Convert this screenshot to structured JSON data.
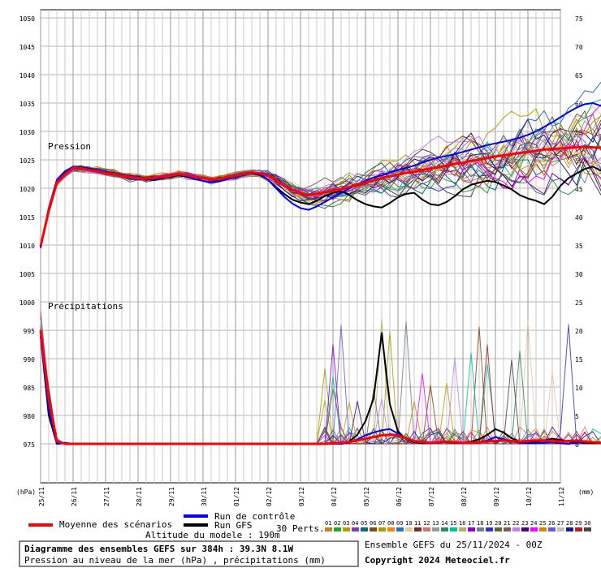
{
  "chart_data": {
    "type": "line",
    "labels": {
      "pressure_section": "Pression",
      "precip_section": "Précipitations",
      "left_unit": "(hPa)",
      "right_unit": "(mm)"
    },
    "left_axis": {
      "min": 975,
      "max": 1050,
      "ticks": [
        1050,
        1045,
        1040,
        1035,
        1030,
        1025,
        1020,
        1015,
        1010,
        1005,
        1000,
        995,
        990,
        985,
        980,
        975
      ]
    },
    "right_axis": {
      "min": 0,
      "max": 75,
      "ticks": [
        75,
        70,
        65,
        60,
        55,
        50,
        45,
        40,
        35,
        30,
        25,
        20,
        15,
        10,
        5,
        0
      ]
    },
    "x_ticks": [
      "25/11",
      "26/11",
      "27/11",
      "28/11",
      "29/11",
      "30/11",
      "01/12",
      "02/12",
      "03/12",
      "04/12",
      "05/12",
      "06/12",
      "07/12",
      "08/12",
      "09/12",
      "10/12",
      "11/12"
    ],
    "x_range_hours": [
      0,
      384
    ],
    "time_step_hours": 6,
    "series": [
      {
        "name": "Moyenne des scénarios",
        "color": "#ff0000",
        "role": "pressure",
        "values": [
          1009.8,
          1016,
          1021,
          1022.4,
          1023.6,
          1023.5,
          1023.2,
          1023,
          1022.7,
          1022.5,
          1022.2,
          1022,
          1021.8,
          1021.7,
          1021.8,
          1022,
          1022.2,
          1022.5,
          1022.3,
          1022,
          1021.8,
          1021.5,
          1021.6,
          1021.9,
          1022.2,
          1022.5,
          1022.8,
          1022.6,
          1022.2,
          1021.5,
          1020.5,
          1019.7,
          1019.2,
          1018.8,
          1019,
          1019.3,
          1019.5,
          1019.8,
          1020.2,
          1020.6,
          1021,
          1021.4,
          1021.8,
          1022.1,
          1022.4,
          1022.7,
          1022.9,
          1023.2,
          1023.5,
          1023.7,
          1024,
          1024.3,
          1024.5,
          1024.8,
          1025,
          1025.3,
          1025.6,
          1025.8,
          1026,
          1026.2,
          1026.4,
          1026.6,
          1026.8,
          1026.9,
          1027,
          1027.1,
          1027.2,
          1027.3,
          1027.2,
          1027.1,
          1027.2,
          1027.3,
          1027.2,
          1027,
          1026.8,
          1026.6,
          1026.5,
          1026.4,
          1026.2,
          1025.9,
          1025.6,
          1025.4,
          1025.3,
          1025.1,
          1025,
          1024.8,
          1024.9,
          1025.2,
          1025.6,
          1025.8,
          1025.5,
          1025.3,
          1025.6,
          1025.5,
          1025.4,
          1025.6
        ]
      },
      {
        "name": "Run de contrôle",
        "color": "#0000ff",
        "role": "pressure",
        "values": [
          1009.5,
          1016.5,
          1021.5,
          1023,
          1023.8,
          1023.7,
          1023.5,
          1023.2,
          1023,
          1022.6,
          1022.4,
          1022.2,
          1022,
          1021.7,
          1021.5,
          1021.8,
          1022.1,
          1022.4,
          1022.1,
          1021.6,
          1021.3,
          1021,
          1021.2,
          1021.6,
          1022,
          1022.3,
          1022.7,
          1022.4,
          1021.5,
          1020,
          1018.5,
          1017.3,
          1016.5,
          1016.2,
          1016.8,
          1017.6,
          1018.4,
          1019.2,
          1020,
          1020.6,
          1021.3,
          1021.9,
          1022.3,
          1022.8,
          1023.2,
          1023.6,
          1024,
          1024.5,
          1025,
          1025.4,
          1025.7,
          1026,
          1026.4,
          1026.8,
          1027.2,
          1027.6,
          1027.9,
          1028.2,
          1028.5,
          1028.9,
          1029.4,
          1030,
          1030.8,
          1031.6,
          1032.5,
          1033.4,
          1034.2,
          1034.8,
          1035,
          1034.5,
          1033.6,
          1032.2,
          1030.5,
          1028.6,
          1027,
          1025.6,
          1024.5,
          1023.8,
          1023,
          1022.6,
          1022.2,
          1022,
          1021.8,
          1021.6,
          1021.3,
          1021,
          1020.7,
          1020.5,
          1020.3,
          1020.8,
          1021.6,
          1022.5,
          1023.1,
          1023.6,
          1024,
          1024.4
        ]
      },
      {
        "name": "Run GFS",
        "color": "#000000",
        "role": "pressure",
        "values": [
          1009.7,
          1016.3,
          1021.2,
          1022.9,
          1023.7,
          1023.6,
          1023.4,
          1023.1,
          1022.9,
          1022.6,
          1022.3,
          1022.1,
          1021.9,
          1021.6,
          1021.4,
          1021.8,
          1022,
          1022.3,
          1022,
          1021.6,
          1021.3,
          1021,
          1021.3,
          1021.7,
          1022,
          1022.4,
          1022.6,
          1022.3,
          1021.5,
          1020.2,
          1019,
          1018,
          1017.5,
          1017.2,
          1017.8,
          1018.6,
          1019.2,
          1019.5,
          1018.8,
          1017.9,
          1017.2,
          1016.8,
          1016.6,
          1017.4,
          1018.4,
          1019,
          1019.2,
          1018,
          1017.2,
          1017,
          1017.6,
          1018.6,
          1019.8,
          1020.6,
          1021,
          1021.3,
          1021.1,
          1020.5,
          1019.8,
          1018.8,
          1018.2,
          1017.8,
          1017.2,
          1018.5,
          1020.4,
          1021.8,
          1022.6,
          1023.4,
          1023.8,
          1023.1,
          1022.1,
          1021.1,
          1020.6,
          1021.3,
          1022.4,
          1023.1,
          1023.6,
          1023.8,
          1024,
          1023.7,
          1023.4,
          1023.8,
          1024.1,
          1023.9,
          1023.4,
          1022.8,
          1022.1,
          1021.8,
          1021.2,
          1020.6,
          1020.2,
          1020.8,
          1021.6,
          1022.5,
          1023.1,
          1023.8
        ]
      },
      {
        "name": "Moyenne des scénarios",
        "color": "#ff0000",
        "role": "precip",
        "values": [
          20,
          8,
          0.5,
          0,
          0,
          0,
          0,
          0,
          0,
          0,
          0,
          0,
          0,
          0,
          0,
          0,
          0,
          0,
          0,
          0,
          0,
          0,
          0,
          0,
          0,
          0,
          0,
          0,
          0,
          0,
          0,
          0,
          0,
          0,
          0,
          0,
          0.1,
          0.2,
          0.3,
          0.6,
          0.9,
          1.2,
          1.5,
          1.6,
          1.5,
          1,
          0.5,
          0.3,
          0.2,
          0.3,
          0.4,
          0.3,
          0.2,
          0.2,
          0.3,
          0.4,
          0.5,
          0.6,
          0.5,
          0.4,
          0.5,
          0.6,
          0.6,
          0.5,
          0.4,
          0.5,
          0.6,
          0.4,
          0.3,
          0.2,
          0.3,
          0.4,
          0.5,
          0.5,
          0.4,
          0.4,
          0.3,
          0.5,
          0.6,
          0.4,
          0.3,
          0.2,
          0.3,
          0.4,
          0.5,
          0.5,
          0.6,
          0.6,
          0.4,
          0.3,
          0.2,
          0.3,
          0.2,
          0.1,
          0.1,
          0
        ]
      },
      {
        "name": "Run de contrôle",
        "color": "#0000ff",
        "role": "precip",
        "values": [
          19,
          6,
          0,
          0.2,
          0,
          0,
          0,
          0,
          0,
          0,
          0,
          0,
          0,
          0,
          0,
          0,
          0,
          0,
          0,
          0,
          0,
          0,
          0,
          0,
          0,
          0,
          0,
          0,
          0,
          0,
          0,
          0,
          0,
          0,
          0,
          0,
          0,
          0,
          0.2,
          0.8,
          1.5,
          2,
          2.4,
          2.6,
          1.8,
          0.9,
          0.4,
          0.2,
          0.1,
          0.2,
          0.3,
          0.2,
          0.1,
          0.1,
          0.3,
          0.6,
          1.2,
          0.8,
          0.4,
          0.2,
          0.1,
          0.1,
          0.2,
          0.3,
          0.1,
          0,
          0.2,
          0.5,
          0.3,
          0.1,
          0.1,
          0.2,
          0.1,
          0,
          0.2,
          0.5,
          0.9,
          0.6,
          0.3,
          0.1,
          0,
          0,
          0.2,
          0.5,
          0.8,
          0.4,
          0.2,
          0.1,
          0,
          0,
          0.2,
          0.3,
          0.1,
          0,
          0,
          0
        ]
      },
      {
        "name": "Run GFS",
        "color": "#000000",
        "role": "precip",
        "values": [
          19,
          5,
          0,
          0.1,
          0,
          0,
          0,
          0,
          0,
          0,
          0,
          0,
          0,
          0,
          0,
          0,
          0,
          0,
          0,
          0,
          0,
          0,
          0,
          0,
          0,
          0,
          0,
          0,
          0,
          0,
          0,
          0,
          0,
          0,
          0,
          0,
          0,
          0,
          0.4,
          1.6,
          4,
          8,
          19.5,
          7,
          2.2,
          0.8,
          0.3,
          0.1,
          0.1,
          0.3,
          0.4,
          0.3,
          0.2,
          0.4,
          0.8,
          1.6,
          2.6,
          2,
          1,
          0.4,
          0.2,
          0.3,
          0.6,
          0.9,
          0.7,
          0.4,
          0.3,
          0.2,
          0.1,
          0.1,
          0.3,
          0.5,
          0.8,
          0.7,
          0.4,
          0.2,
          0.1,
          0.2,
          0.4,
          0.8,
          1.1,
          0.8,
          0.4,
          0.2,
          0.1,
          0,
          0.3,
          0.6,
          0.4,
          0.2,
          0.1,
          0.1,
          0.1,
          0,
          0,
          0
        ]
      }
    ],
    "perturbation_colors": [
      "#d07a2b",
      "#2ca02c",
      "#b8a000",
      "#7a3fbf",
      "#007070",
      "#8b4513",
      "#a0a000",
      "#ff7f0e",
      "#1f77b4",
      "#e8c8a0",
      "#6b3a1c",
      "#e07070",
      "#999999",
      "#2e8b57",
      "#00c0a0",
      "#b0b060",
      "#9400d3",
      "#708090",
      "#3333cc",
      "#556b2f",
      "#8c564b",
      "#c080ff",
      "#4b0082",
      "#ff00ff",
      "#cc8800",
      "#6a5acd",
      "#c0c0c0",
      "#1a1a8c",
      "#b22222",
      "#444444"
    ],
    "perturbation_codes": [
      "01",
      "02",
      "03",
      "04",
      "05",
      "06",
      "07",
      "08",
      "09",
      "10",
      "11",
      "12",
      "13",
      "14",
      "15",
      "16",
      "17",
      "18",
      "19",
      "20",
      "21",
      "22",
      "23",
      "24",
      "25",
      "26",
      "27",
      "28",
      "29",
      "30"
    ]
  },
  "legend": {
    "mean_label": "Moyenne des scénarios",
    "control_label": "Run de contrôle",
    "gfs_label": "Run GFS",
    "perts_label": "30 Perts.",
    "mean_color": "#ff0000",
    "control_color": "#0000ff",
    "gfs_color": "#000000"
  },
  "info": {
    "altitude": "Altitude du modele : 190m",
    "title": "Diagramme des ensembles GEFS sur 384h : 39.3N 8.1W",
    "subtitle": "Pression au niveau de la mer (hPa) , précipitations (mm)",
    "ensemble": "Ensemble GEFS du 25/11/2024 - 00Z",
    "copyright": "Copyright 2024 Meteociel.fr"
  }
}
